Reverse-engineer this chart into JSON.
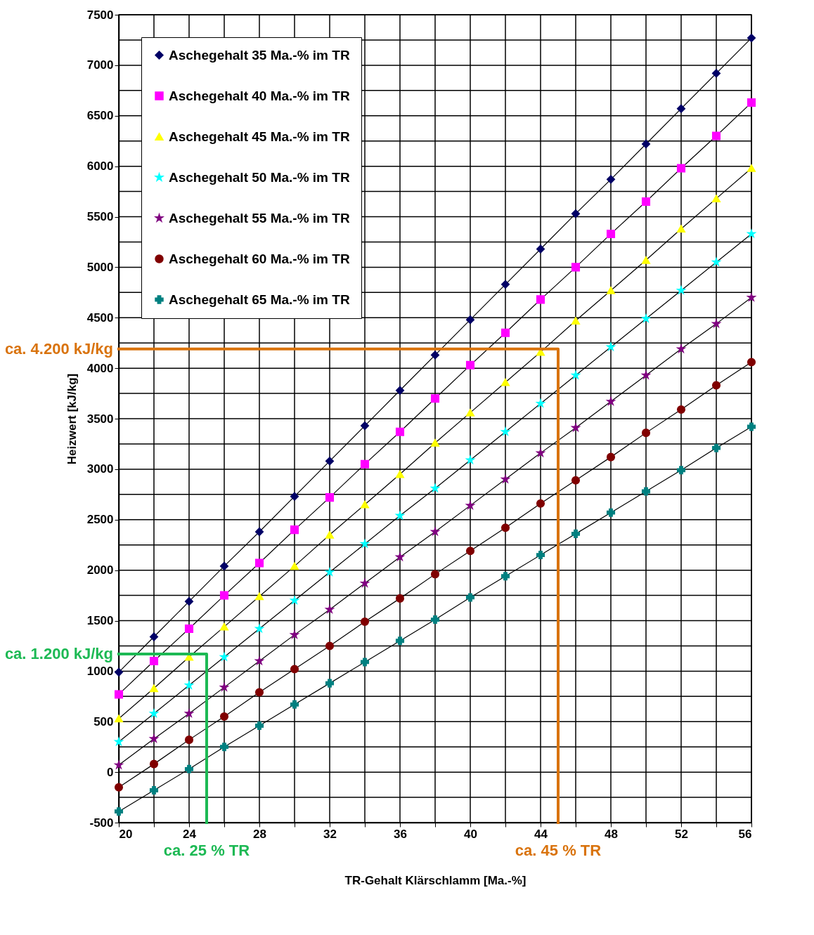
{
  "chart_data": {
    "type": "line",
    "xlabel": "TR-Gehalt Klärschlamm [Ma.-%]",
    "ylabel": "Heizwert [kJ/kg]",
    "x": [
      20,
      22,
      24,
      26,
      28,
      30,
      32,
      34,
      36,
      38,
      40,
      42,
      44,
      46,
      48,
      50,
      52,
      54,
      56
    ],
    "series": [
      {
        "name": "Aschegehalt 35 Ma.-% im TR",
        "color": "#000066",
        "marker": "diamond",
        "values": [
          990,
          1340,
          1690,
          2040,
          2380,
          2730,
          3080,
          3430,
          3780,
          4130,
          4480,
          4830,
          5180,
          5530,
          5870,
          6220,
          6570,
          6920,
          7270
        ]
      },
      {
        "name": "Aschegehalt 40 Ma.-% im TR",
        "color": "#ff00ff",
        "marker": "square",
        "values": [
          770,
          1100,
          1420,
          1750,
          2070,
          2400,
          2720,
          3050,
          3370,
          3700,
          4030,
          4350,
          4680,
          5000,
          5330,
          5650,
          5980,
          6300,
          6630
        ]
      },
      {
        "name": "Aschegehalt 45 Ma.-% im TR",
        "color": "#ffff00",
        "marker": "triangle",
        "values": [
          530,
          830,
          1140,
          1440,
          1740,
          2040,
          2350,
          2650,
          2950,
          3260,
          3560,
          3860,
          4160,
          4470,
          4770,
          5070,
          5380,
          5680,
          5980
        ]
      },
      {
        "name": "Aschegehalt 50 Ma.-% im TR",
        "color": "#00ffff",
        "marker": "star",
        "values": [
          300,
          580,
          860,
          1140,
          1420,
          1700,
          1980,
          2260,
          2540,
          2810,
          3090,
          3370,
          3650,
          3930,
          4210,
          4490,
          4770,
          5050,
          5330
        ]
      },
      {
        "name": "Aschegehalt 55 Ma.-% im TR",
        "color": "#800080",
        "marker": "star",
        "values": [
          70,
          330,
          580,
          840,
          1100,
          1360,
          1610,
          1870,
          2130,
          2380,
          2640,
          2900,
          3160,
          3410,
          3670,
          3930,
          4190,
          4440,
          4700
        ]
      },
      {
        "name": "Aschegehalt 60 Ma.-% im TR",
        "color": "#800000",
        "marker": "circle",
        "values": [
          -150,
          80,
          320,
          550,
          790,
          1020,
          1250,
          1490,
          1720,
          1960,
          2190,
          2420,
          2660,
          2890,
          3120,
          3360,
          3590,
          3830,
          4060
        ]
      },
      {
        "name": "Aschegehalt 65 Ma.-% im TR",
        "color": "#008080",
        "marker": "cross",
        "values": [
          -390,
          -180,
          30,
          250,
          460,
          670,
          880,
          1090,
          1300,
          1510,
          1730,
          1940,
          2150,
          2360,
          2570,
          2780,
          2990,
          3210,
          3420
        ]
      },
      {
        "type": "line",
        "color": "#d9730d",
        "marker": "none",
        "x": [
          20,
          45,
          45
        ],
        "values": [
          4190,
          4190,
          -500
        ]
      },
      {
        "type": "line",
        "color": "#1db954",
        "marker": "none",
        "x": [
          20,
          25,
          25
        ],
        "values": [
          1170,
          1170,
          -500
        ]
      }
    ],
    "annotations": [
      {
        "text": "ca. 4.200 kJ/kg",
        "x": 20,
        "y": 4190
      },
      {
        "text": "ca. 45 % TR",
        "x": 45,
        "y": -500
      },
      {
        "text": "ca. 1.200 kJ/kg",
        "x": 20,
        "y": 1170
      },
      {
        "text": "ca. 25 % TR",
        "x": 25,
        "y": -500
      }
    ],
    "xlim": [
      20,
      56
    ],
    "xticks": [
      20,
      {
        "value": 22,
        "label": null
      },
      24,
      {
        "value": 26,
        "label": null
      },
      28,
      {
        "value": 30,
        "label": null
      },
      32,
      {
        "value": 34,
        "label": null
      },
      36,
      {
        "value": 38,
        "label": null
      },
      40,
      {
        "value": 42,
        "label": null
      },
      44,
      {
        "value": 46,
        "label": null
      },
      48,
      {
        "value": 50,
        "label": null
      },
      52,
      {
        "value": 54,
        "label": null
      },
      56
    ],
    "ylim": [
      -500,
      7500
    ],
    "yticks": [
      -500,
      {
        "value": -250,
        "label": null
      },
      0,
      {
        "value": 250,
        "label": null
      },
      500,
      {
        "value": 750,
        "label": null
      },
      1000,
      {
        "value": 1250,
        "label": null
      },
      1500,
      {
        "value": 1750,
        "label": null
      },
      2000,
      {
        "value": 2250,
        "label": null
      },
      2500,
      {
        "value": 2750,
        "label": null
      },
      3000,
      {
        "value": 3250,
        "label": null
      },
      3500,
      {
        "value": 3750,
        "label": null
      },
      4000,
      {
        "value": 4250,
        "label": null
      },
      4500,
      {
        "value": 4750,
        "label": null
      },
      5000,
      {
        "value": 5250,
        "label": null
      },
      5500,
      {
        "value": 5750,
        "label": null
      },
      6000,
      {
        "value": 6250,
        "label": null
      },
      6500,
      {
        "value": 6750,
        "label": null
      },
      7000,
      {
        "value": 7250,
        "label": null
      },
      7500
    ],
    "grid": true,
    "legend": "top left"
  }
}
